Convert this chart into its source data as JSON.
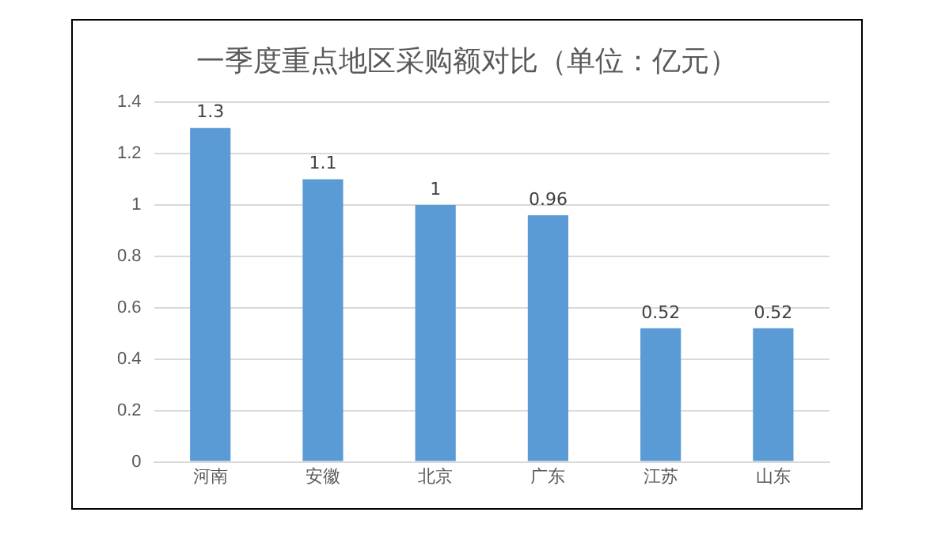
{
  "chart_data": {
    "type": "bar",
    "title": "一季度重点地区采购额对比（单位：亿元）",
    "categories": [
      "河南",
      "安徽",
      "北京",
      "广东",
      "江苏",
      "山东"
    ],
    "values": [
      1.3,
      1.1,
      1,
      0.96,
      0.52,
      0.52
    ],
    "color": "#5b9bd5",
    "ylim": [
      0,
      1.4
    ],
    "yticks": [
      0,
      0.2,
      0.4,
      0.6,
      0.8,
      1,
      1.2,
      1.4
    ],
    "grid": "y",
    "data_labels": true,
    "legend": false
  }
}
